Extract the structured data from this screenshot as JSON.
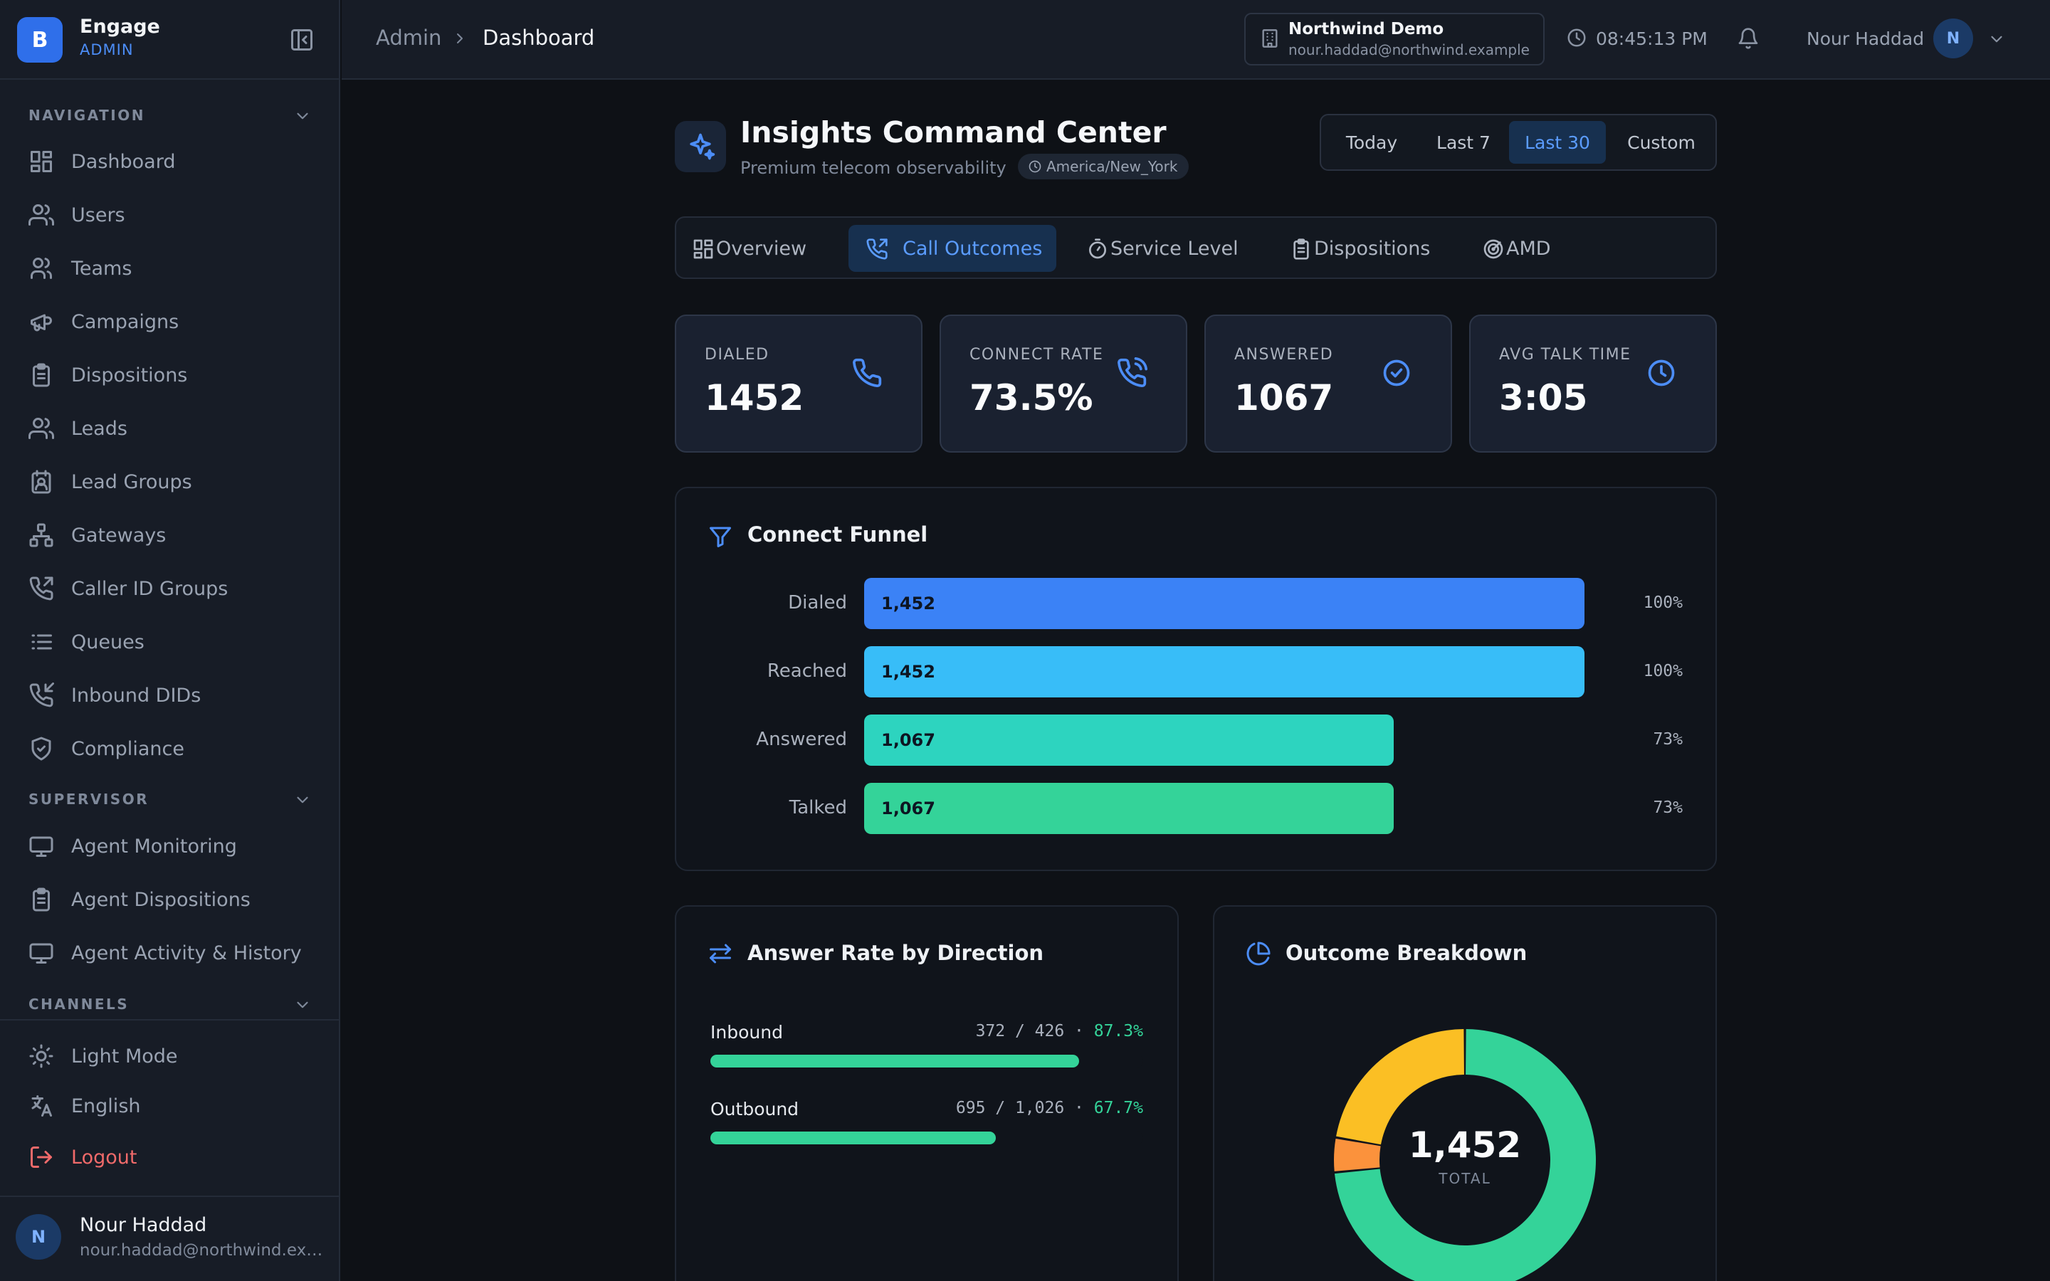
{
  "brand": {
    "initial": "B",
    "title": "Engage",
    "subtitle": "ADMIN"
  },
  "sidebar": {
    "sections": [
      {
        "label": "NAVIGATION"
      },
      {
        "label": "SUPERVISOR"
      },
      {
        "label": "CHANNELS"
      }
    ],
    "navigation": [
      {
        "label": "Dashboard",
        "icon": "dashboard-icon"
      },
      {
        "label": "Users",
        "icon": "users-icon"
      },
      {
        "label": "Teams",
        "icon": "teams-icon"
      },
      {
        "label": "Campaigns",
        "icon": "megaphone-icon"
      },
      {
        "label": "Dispositions",
        "icon": "clipboard-icon"
      },
      {
        "label": "Leads",
        "icon": "users-icon"
      },
      {
        "label": "Lead Groups",
        "icon": "contact-group-icon"
      },
      {
        "label": "Gateways",
        "icon": "network-icon"
      },
      {
        "label": "Caller ID Groups",
        "icon": "phone-outgoing-icon"
      },
      {
        "label": "Queues",
        "icon": "list-icon"
      },
      {
        "label": "Inbound DIDs",
        "icon": "phone-incoming-icon"
      },
      {
        "label": "Compliance",
        "icon": "shield-check-icon"
      }
    ],
    "supervisor": [
      {
        "label": "Agent Monitoring",
        "icon": "monitor-icon"
      },
      {
        "label": "Agent Dispositions",
        "icon": "clipboard-icon"
      },
      {
        "label": "Agent Activity & History",
        "icon": "monitor-icon"
      }
    ],
    "bottom": {
      "theme": "Light Mode",
      "language": "English",
      "logout": "Logout"
    },
    "user": {
      "initial": "N",
      "name": "Nour Haddad",
      "email": "nour.haddad@northwind.example"
    }
  },
  "topbar": {
    "breadcrumb": [
      "Admin",
      "Dashboard"
    ],
    "org": {
      "name": "Northwind Demo",
      "email": "nour.haddad@northwind.example"
    },
    "clock": "08:45:13 PM",
    "user": {
      "name": "Nour Haddad",
      "initial": "N"
    }
  },
  "page": {
    "title": "Insights Command Center",
    "subtitle": "Premium telecom observability",
    "timezone": "America/New_York",
    "ranges": [
      "Today",
      "Last 7",
      "Last 30",
      "Custom"
    ],
    "active_range": "Last 30",
    "tabs": [
      {
        "label": "Overview",
        "icon": "grid-icon"
      },
      {
        "label": "Call Outcomes",
        "icon": "phone-icon"
      },
      {
        "label": "Service Level",
        "icon": "stopwatch-icon"
      },
      {
        "label": "Dispositions",
        "icon": "clipboard-icon"
      },
      {
        "label": "AMD",
        "icon": "radar-icon"
      }
    ],
    "active_tab": "Call Outcomes"
  },
  "kpis": [
    {
      "label": "DIALED",
      "value": "1452",
      "icon": "phone-icon"
    },
    {
      "label": "CONNECT RATE",
      "value": "73.5%",
      "icon": "phone-call-icon"
    },
    {
      "label": "ANSWERED",
      "value": "1067",
      "icon": "check-circle-icon"
    },
    {
      "label": "AVG TALK TIME",
      "value": "3:05",
      "icon": "clock-icon"
    }
  ],
  "funnel": {
    "title": "Connect Funnel",
    "stages": [
      {
        "label": "Dialed",
        "value": "1,452",
        "pct": "100%",
        "fraction": 1.0,
        "color": "#3b82f6"
      },
      {
        "label": "Reached",
        "value": "1,452",
        "pct": "100%",
        "fraction": 1.0,
        "color": "#38bdf8"
      },
      {
        "label": "Answered",
        "value": "1,067",
        "pct": "73%",
        "fraction": 0.735,
        "color": "#2dd4bf"
      },
      {
        "label": "Talked",
        "value": "1,067",
        "pct": "73%",
        "fraction": 0.735,
        "color": "#34d399"
      }
    ]
  },
  "direction": {
    "title": "Answer Rate by Direction",
    "rows": [
      {
        "label": "Inbound",
        "stat": "372 / 426 · ",
        "pct": "87.3%",
        "fraction": 0.873
      },
      {
        "label": "Outbound",
        "stat": "695 / 1,026 · ",
        "pct": "67.7%",
        "fraction": 0.677
      }
    ]
  },
  "outcome": {
    "title": "Outcome Breakdown",
    "total": "1,452",
    "total_label": "TOTAL",
    "slices": [
      {
        "value": 1067,
        "color": "#34d399"
      },
      {
        "value": 62,
        "color": "#fb923c"
      },
      {
        "value": 323,
        "color": "#fbbf24"
      }
    ]
  },
  "colors": {
    "accent": "#4c8df7",
    "success": "#34d399",
    "danger": "#f06a6a"
  }
}
